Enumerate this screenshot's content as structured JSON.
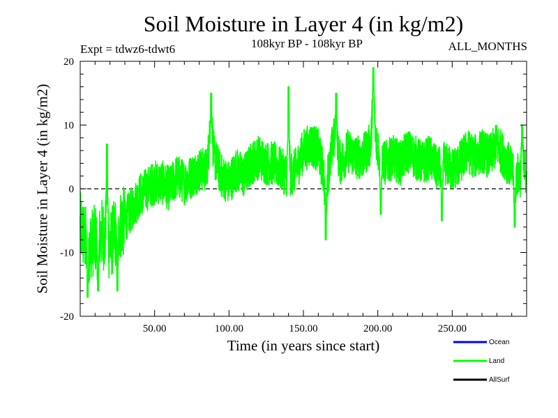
{
  "chart_data": {
    "type": "line",
    "title": "Soil Moisture in Layer 4 (in kg/m2)",
    "subtitle": "108kyr BP - 108kyr BP",
    "expt_label": "Expt = tdwz6-tdwt6",
    "months_label": "ALL_MONTHS",
    "xlabel": "Time (in years since start)",
    "ylabel": "Soil Moisture in Layer 4 (in kg/m2)",
    "xlim": [
      0,
      300
    ],
    "ylim": [
      -20,
      20
    ],
    "x_ticks": [
      50,
      100,
      150,
      200,
      250
    ],
    "x_tick_labels": [
      "50.00",
      "100.00",
      "150.00",
      "200.00",
      "250.00"
    ],
    "y_ticks": [
      -20,
      -10,
      0,
      10,
      20
    ],
    "y_tick_labels": [
      "-20",
      "-10",
      "0",
      "10",
      "20"
    ],
    "zero_line": "dashed",
    "legend_position": "bottom-right",
    "series": [
      {
        "name": "Ocean",
        "color": "#0000ff",
        "x": [],
        "y": []
      },
      {
        "name": "Land",
        "color": "#00ff00",
        "x": [
          0,
          5,
          10,
          15,
          20,
          25,
          30,
          35,
          40,
          45,
          50,
          55,
          60,
          65,
          70,
          75,
          80,
          85,
          88,
          90,
          95,
          100,
          105,
          110,
          115,
          120,
          125,
          130,
          135,
          140,
          145,
          150,
          155,
          160,
          165,
          168,
          170,
          175,
          180,
          185,
          190,
          195,
          197,
          200,
          205,
          210,
          215,
          220,
          225,
          230,
          235,
          240,
          245,
          250,
          255,
          260,
          265,
          270,
          275,
          280,
          285,
          290,
          295,
          300
        ],
        "y": [
          -6,
          -9,
          -8,
          -7,
          -9,
          -6,
          -5,
          -3,
          -1,
          0,
          1,
          1,
          0,
          2,
          1,
          2,
          3,
          3,
          10,
          5,
          2,
          1,
          3,
          2,
          4,
          5,
          4,
          4,
          3,
          2,
          3,
          6,
          7,
          6,
          1,
          4,
          8,
          4,
          6,
          5,
          5,
          7,
          12,
          6,
          4,
          5,
          4,
          6,
          5,
          4,
          5,
          3,
          4,
          3,
          4,
          6,
          5,
          6,
          5,
          7,
          5,
          3,
          2,
          3
        ],
        "variability": 3.5,
        "extremes": [
          {
            "x": 5,
            "y": -17
          },
          {
            "x": 12,
            "y": -16
          },
          {
            "x": 18,
            "y": 7
          },
          {
            "x": 25,
            "y": -16
          },
          {
            "x": 88,
            "y": 15
          },
          {
            "x": 140,
            "y": 16
          },
          {
            "x": 165,
            "y": -8
          },
          {
            "x": 172,
            "y": 15
          },
          {
            "x": 197,
            "y": 19
          },
          {
            "x": 202,
            "y": -4
          },
          {
            "x": 243,
            "y": -5
          },
          {
            "x": 292,
            "y": -6
          },
          {
            "x": 297,
            "y": 10
          }
        ]
      },
      {
        "name": "AllSurf",
        "color": "#000000",
        "x": [],
        "y": []
      }
    ]
  }
}
